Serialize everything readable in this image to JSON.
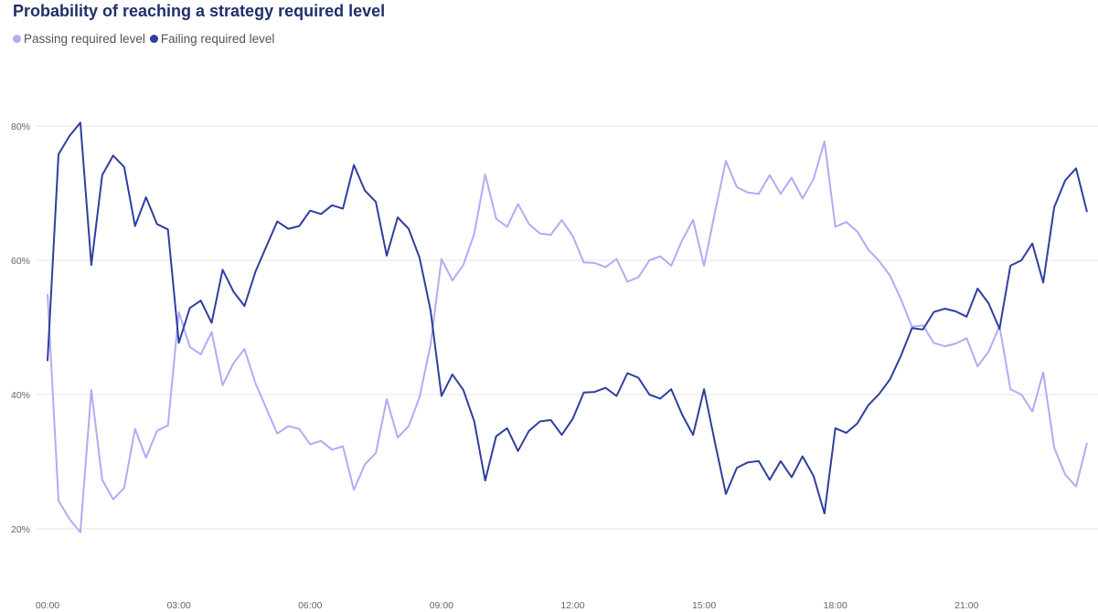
{
  "chart_data": {
    "type": "line",
    "title": "Probability of reaching a strategy required level",
    "xlabel": "",
    "ylabel": "",
    "ylim": [
      15,
      85
    ],
    "grid": true,
    "legend_position": "top-left",
    "y_ticks": [
      20,
      40,
      60,
      80
    ],
    "y_tick_labels": [
      "20%",
      "40%",
      "60%",
      "80%"
    ],
    "x_ticks": [
      0,
      180,
      360,
      540,
      720,
      900,
      1080,
      1260
    ],
    "x_tick_labels": [
      "00:00",
      "03:00",
      "06:00",
      "09:00",
      "12:00",
      "15:00",
      "18:00",
      "21:00"
    ],
    "x_step_minutes": 15,
    "series": [
      {
        "name": "Passing required level",
        "color": "#b3aaf5",
        "values": [
          55.0,
          24.2,
          21.5,
          19.5,
          40.7,
          27.3,
          24.4,
          26.1,
          34.9,
          30.6,
          34.6,
          35.4,
          52.3,
          47.1,
          46.0,
          49.3,
          41.4,
          44.7,
          46.8,
          41.7,
          37.9,
          34.2,
          35.3,
          34.9,
          32.6,
          33.1,
          31.8,
          32.3,
          25.8,
          29.6,
          31.3,
          39.3,
          33.6,
          35.3,
          39.6,
          47.4,
          60.2,
          57.0,
          59.3,
          64.0,
          72.8,
          66.2,
          65.0,
          68.4,
          65.4,
          64.0,
          63.8,
          66.0,
          63.6,
          59.7,
          59.6,
          59.0,
          60.2,
          56.8,
          57.5,
          60.0,
          60.6,
          59.2,
          63.0,
          66.0,
          59.2,
          67.2,
          74.8,
          70.9,
          70.1,
          69.9,
          72.7,
          69.9,
          72.3,
          69.2,
          72.1,
          77.7,
          65.0,
          65.7,
          64.3,
          61.6,
          59.9,
          57.7,
          54.2,
          50.1,
          50.3,
          47.7,
          47.2,
          47.6,
          48.4,
          44.2,
          46.4,
          50.2,
          40.8,
          40.0,
          37.5,
          43.3,
          32.1,
          28.1,
          26.3,
          32.8
        ]
      },
      {
        "name": "Failing required level",
        "color": "#2f3f9e",
        "values": [
          45.0,
          75.8,
          78.5,
          80.5,
          59.3,
          72.7,
          75.6,
          73.9,
          65.1,
          69.4,
          65.4,
          64.6,
          47.7,
          52.9,
          54.0,
          50.7,
          58.6,
          55.3,
          53.2,
          58.3,
          62.1,
          65.8,
          64.7,
          65.1,
          67.4,
          66.9,
          68.2,
          67.7,
          74.2,
          70.4,
          68.7,
          60.7,
          66.4,
          64.7,
          60.4,
          52.6,
          39.8,
          43.0,
          40.7,
          36.0,
          27.2,
          33.8,
          35.0,
          31.6,
          34.6,
          36.0,
          36.2,
          34.0,
          36.4,
          40.3,
          40.4,
          41.0,
          39.8,
          43.2,
          42.5,
          40.0,
          39.4,
          40.8,
          37.0,
          34.0,
          40.8,
          32.8,
          25.2,
          29.1,
          29.9,
          30.1,
          27.3,
          30.1,
          27.7,
          30.8,
          27.9,
          22.3,
          35.0,
          34.3,
          35.7,
          38.4,
          40.1,
          42.3,
          45.8,
          49.9,
          49.7,
          52.3,
          52.8,
          52.4,
          51.6,
          55.8,
          53.6,
          49.8,
          59.2,
          60.0,
          62.5,
          56.7,
          67.9,
          71.9,
          73.7,
          67.2
        ]
      }
    ]
  }
}
